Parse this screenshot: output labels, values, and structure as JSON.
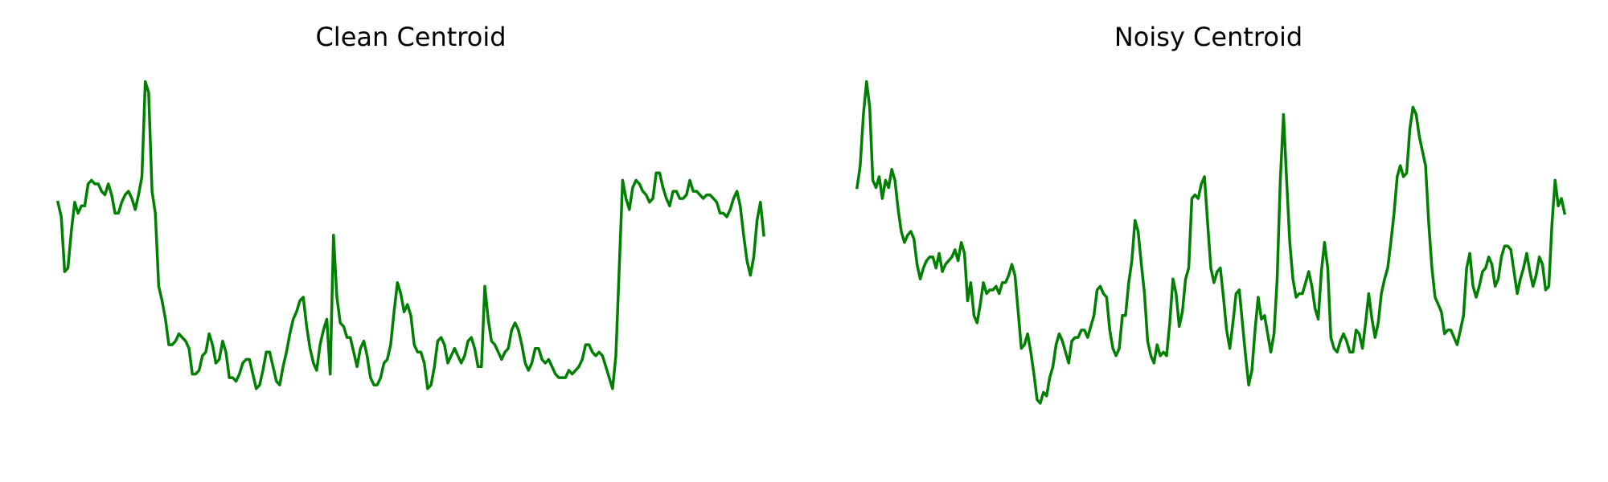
{
  "chart_data": [
    {
      "type": "line",
      "title": "Clean Centroid",
      "line_color": "#008000",
      "grid": false,
      "axes_visible": false,
      "ylim": [
        0,
        1
      ],
      "y": [
        0.66,
        0.62,
        0.47,
        0.48,
        0.58,
        0.66,
        0.63,
        0.65,
        0.65,
        0.71,
        0.72,
        0.71,
        0.71,
        0.69,
        0.68,
        0.71,
        0.68,
        0.63,
        0.63,
        0.66,
        0.68,
        0.69,
        0.67,
        0.64,
        0.68,
        0.73,
        0.99,
        0.96,
        0.69,
        0.63,
        0.43,
        0.39,
        0.34,
        0.27,
        0.27,
        0.28,
        0.3,
        0.29,
        0.28,
        0.26,
        0.19,
        0.19,
        0.2,
        0.24,
        0.25,
        0.3,
        0.27,
        0.22,
        0.23,
        0.28,
        0.25,
        0.18,
        0.18,
        0.17,
        0.19,
        0.22,
        0.23,
        0.23,
        0.19,
        0.15,
        0.16,
        0.2,
        0.25,
        0.25,
        0.21,
        0.17,
        0.16,
        0.21,
        0.25,
        0.3,
        0.34,
        0.36,
        0.39,
        0.4,
        0.32,
        0.26,
        0.22,
        0.2,
        0.27,
        0.31,
        0.34,
        0.19,
        0.57,
        0.4,
        0.33,
        0.32,
        0.29,
        0.29,
        0.25,
        0.21,
        0.26,
        0.28,
        0.24,
        0.18,
        0.16,
        0.16,
        0.18,
        0.22,
        0.23,
        0.27,
        0.36,
        0.44,
        0.41,
        0.36,
        0.38,
        0.35,
        0.27,
        0.25,
        0.25,
        0.22,
        0.15,
        0.16,
        0.21,
        0.28,
        0.29,
        0.27,
        0.22,
        0.24,
        0.26,
        0.24,
        0.22,
        0.24,
        0.28,
        0.29,
        0.26,
        0.21,
        0.21,
        0.43,
        0.34,
        0.28,
        0.27,
        0.25,
        0.23,
        0.25,
        0.26,
        0.31,
        0.33,
        0.31,
        0.27,
        0.22,
        0.2,
        0.22,
        0.26,
        0.26,
        0.23,
        0.22,
        0.23,
        0.21,
        0.19,
        0.18,
        0.18,
        0.18,
        0.2,
        0.19,
        0.2,
        0.21,
        0.23,
        0.27,
        0.27,
        0.25,
        0.24,
        0.25,
        0.24,
        0.21,
        0.18,
        0.15,
        0.24,
        0.48,
        0.72,
        0.67,
        0.64,
        0.7,
        0.72,
        0.71,
        0.69,
        0.68,
        0.66,
        0.67,
        0.74,
        0.74,
        0.7,
        0.67,
        0.65,
        0.69,
        0.69,
        0.67,
        0.67,
        0.68,
        0.72,
        0.69,
        0.69,
        0.68,
        0.67,
        0.68,
        0.68,
        0.67,
        0.66,
        0.63,
        0.63,
        0.62,
        0.64,
        0.67,
        0.69,
        0.65,
        0.57,
        0.5,
        0.46,
        0.51,
        0.61,
        0.66,
        0.57
      ]
    },
    {
      "type": "line",
      "title": "Noisy Centroid",
      "line_color": "#008000",
      "grid": false,
      "axes_visible": false,
      "ylim": [
        0,
        1
      ],
      "y": [
        0.7,
        0.76,
        0.9,
        0.99,
        0.92,
        0.72,
        0.7,
        0.73,
        0.67,
        0.72,
        0.7,
        0.75,
        0.72,
        0.64,
        0.58,
        0.55,
        0.57,
        0.58,
        0.56,
        0.49,
        0.45,
        0.48,
        0.5,
        0.51,
        0.51,
        0.48,
        0.52,
        0.47,
        0.49,
        0.5,
        0.51,
        0.53,
        0.5,
        0.55,
        0.52,
        0.39,
        0.44,
        0.35,
        0.33,
        0.38,
        0.44,
        0.41,
        0.42,
        0.42,
        0.43,
        0.41,
        0.44,
        0.44,
        0.46,
        0.49,
        0.46,
        0.36,
        0.26,
        0.27,
        0.3,
        0.25,
        0.19,
        0.12,
        0.11,
        0.14,
        0.13,
        0.18,
        0.21,
        0.27,
        0.3,
        0.28,
        0.25,
        0.22,
        0.28,
        0.29,
        0.29,
        0.31,
        0.31,
        0.29,
        0.32,
        0.35,
        0.42,
        0.43,
        0.41,
        0.4,
        0.31,
        0.26,
        0.24,
        0.26,
        0.35,
        0.35,
        0.44,
        0.5,
        0.61,
        0.58,
        0.49,
        0.41,
        0.28,
        0.24,
        0.22,
        0.27,
        0.24,
        0.25,
        0.24,
        0.33,
        0.45,
        0.41,
        0.32,
        0.36,
        0.45,
        0.48,
        0.67,
        0.68,
        0.67,
        0.71,
        0.73,
        0.6,
        0.48,
        0.44,
        0.47,
        0.48,
        0.4,
        0.31,
        0.26,
        0.33,
        0.41,
        0.42,
        0.33,
        0.24,
        0.16,
        0.2,
        0.31,
        0.4,
        0.34,
        0.35,
        0.3,
        0.25,
        0.3,
        0.45,
        0.72,
        0.9,
        0.72,
        0.55,
        0.45,
        0.4,
        0.41,
        0.41,
        0.44,
        0.47,
        0.43,
        0.37,
        0.34,
        0.47,
        0.55,
        0.48,
        0.29,
        0.26,
        0.25,
        0.28,
        0.3,
        0.28,
        0.25,
        0.25,
        0.31,
        0.3,
        0.26,
        0.33,
        0.41,
        0.34,
        0.29,
        0.33,
        0.41,
        0.45,
        0.48,
        0.55,
        0.63,
        0.73,
        0.76,
        0.73,
        0.74,
        0.86,
        0.92,
        0.9,
        0.84,
        0.8,
        0.76,
        0.6,
        0.48,
        0.4,
        0.38,
        0.36,
        0.3,
        0.31,
        0.31,
        0.29,
        0.27,
        0.31,
        0.35,
        0.48,
        0.52,
        0.43,
        0.4,
        0.43,
        0.47,
        0.48,
        0.51,
        0.49,
        0.43,
        0.45,
        0.51,
        0.54,
        0.54,
        0.53,
        0.47,
        0.41,
        0.45,
        0.48,
        0.52,
        0.47,
        0.43,
        0.46,
        0.51,
        0.49,
        0.42,
        0.43,
        0.6,
        0.72,
        0.65,
        0.67,
        0.63
      ]
    }
  ]
}
